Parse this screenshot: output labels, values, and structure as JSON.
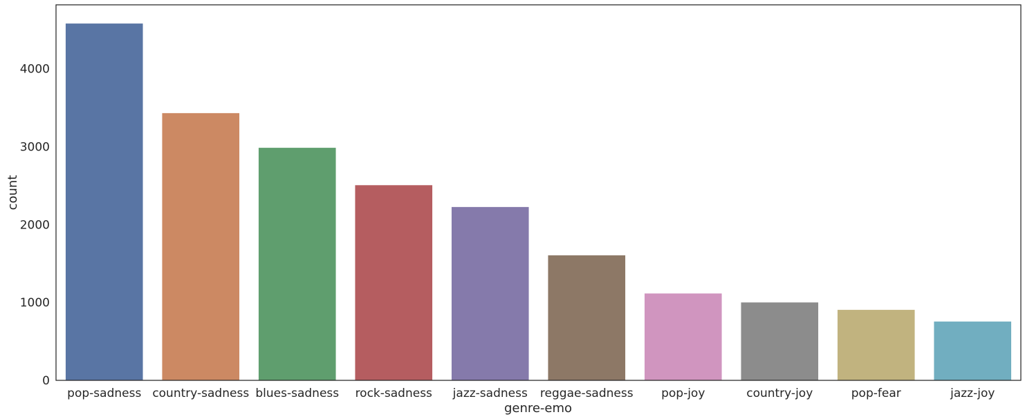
{
  "chart_data": {
    "type": "bar",
    "title": "",
    "xlabel": "genre-emo",
    "ylabel": "count",
    "categories": [
      "pop-sadness",
      "country-sadness",
      "blues-sadness",
      "rock-sadness",
      "jazz-sadness",
      "reggae-sadness",
      "pop-joy",
      "country-joy",
      "pop-fear",
      "jazz-joy"
    ],
    "values": [
      4580,
      3430,
      2985,
      2505,
      2225,
      1605,
      1115,
      1000,
      905,
      755
    ],
    "ylim": [
      0,
      4820
    ],
    "yticks": [
      0,
      1000,
      2000,
      3000,
      4000
    ],
    "ytick_labels": [
      "0",
      "1000",
      "2000",
      "3000",
      "4000"
    ],
    "colors": [
      "#5975a4",
      "#cc8963",
      "#5f9e6e",
      "#b55d60",
      "#857aab",
      "#8d7866",
      "#d095bf",
      "#8c8c8c",
      "#c1b37f",
      "#71aec0"
    ],
    "grid": false,
    "legend": "none"
  }
}
